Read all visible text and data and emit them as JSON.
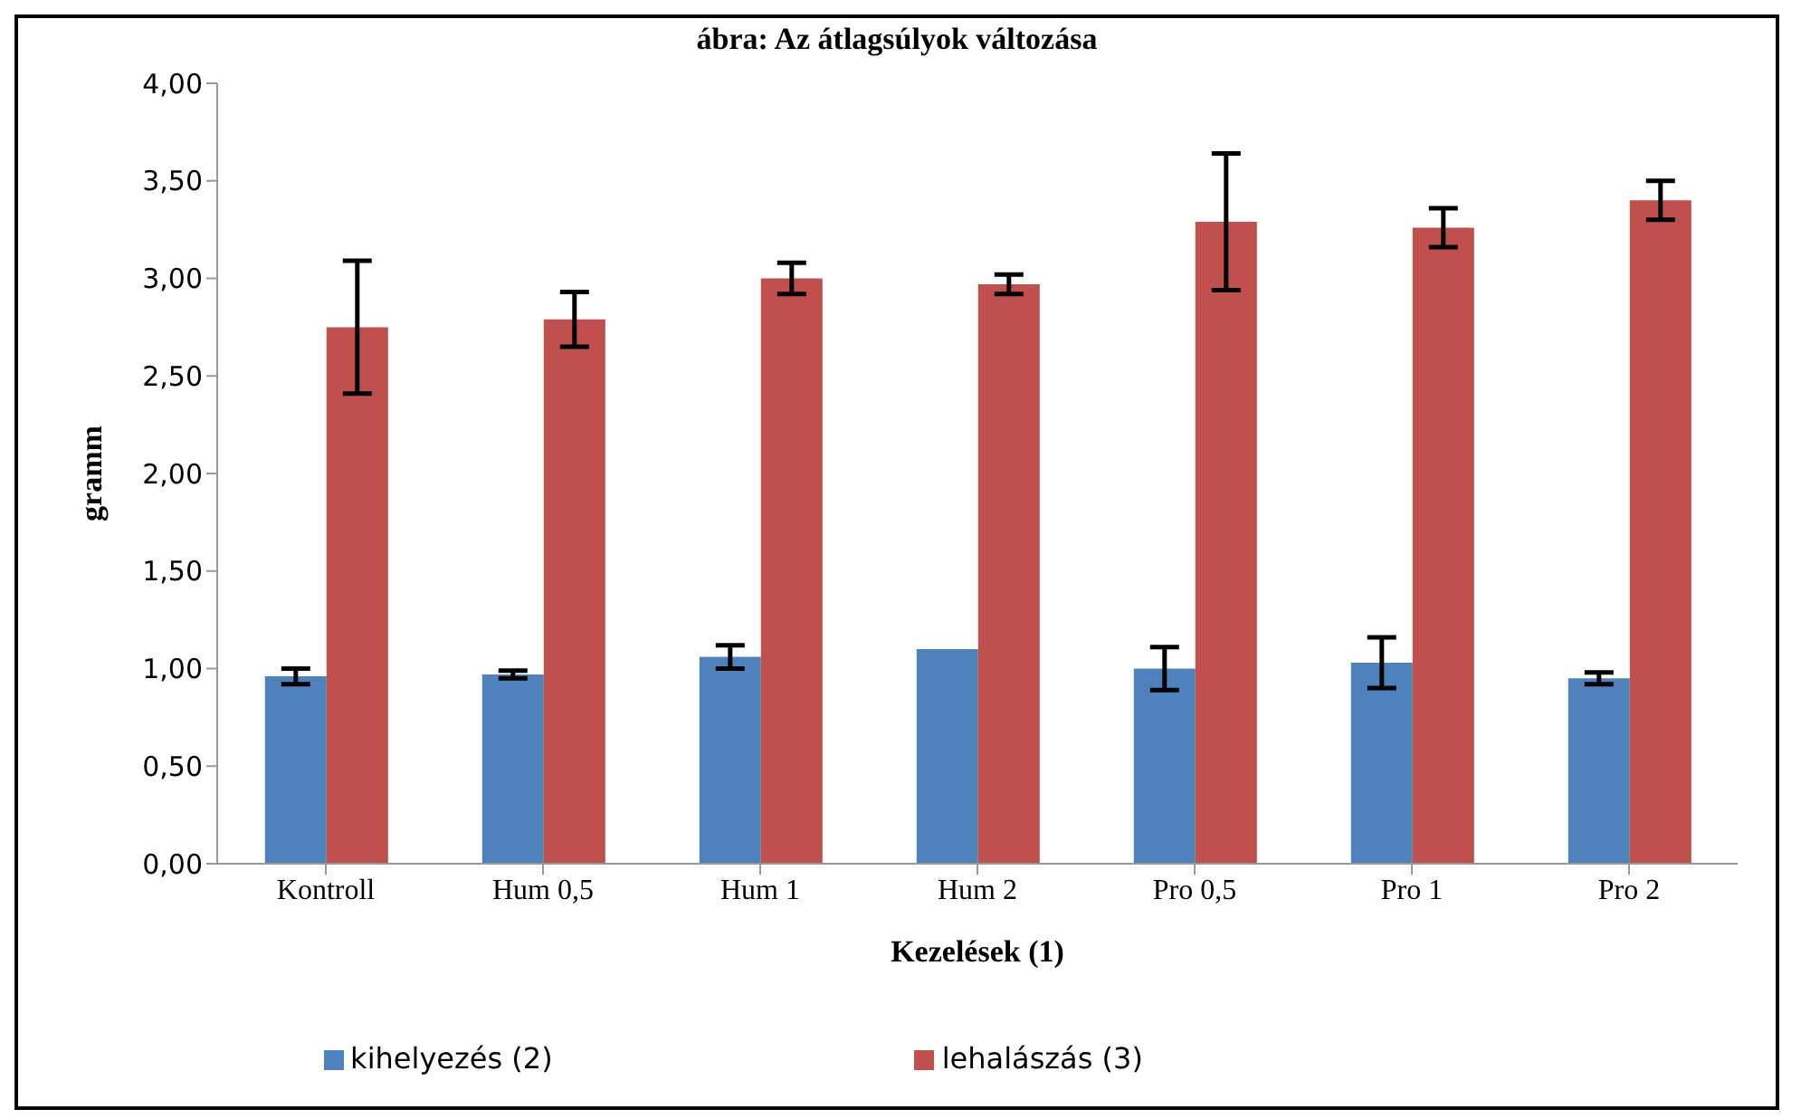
{
  "chart_data": {
    "type": "bar",
    "title": "ábra: Az átlagsúlyok változása",
    "xlabel": "Kezelések (1)",
    "ylabel": "gramm",
    "categories": [
      "Kontroll",
      "Hum 0,5",
      "Hum 1",
      "Hum 2",
      "Pro 0,5",
      "Pro 1",
      "Pro 2"
    ],
    "series": [
      {
        "name": "kihelyezés (2)",
        "color": "#4f81bd",
        "values": [
          0.96,
          0.97,
          1.06,
          1.1,
          1.0,
          1.03,
          0.95
        ],
        "errors": [
          0.04,
          0.02,
          0.06,
          null,
          0.11,
          0.13,
          0.03
        ]
      },
      {
        "name": "lehalászás (3)",
        "color": "#c0504d",
        "values": [
          2.75,
          2.79,
          3.0,
          2.97,
          3.29,
          3.26,
          3.4
        ],
        "errors": [
          0.34,
          0.14,
          0.08,
          0.05,
          0.35,
          0.1,
          0.1
        ]
      }
    ],
    "ylim": [
      0,
      4
    ],
    "yticks": [
      {
        "value": 0,
        "label": "0,00"
      },
      {
        "value": 0.5,
        "label": "0,50"
      },
      {
        "value": 1,
        "label": "1,00"
      },
      {
        "value": 1.5,
        "label": "1,50"
      },
      {
        "value": 2,
        "label": "2,00"
      },
      {
        "value": 2.5,
        "label": "2,50"
      },
      {
        "value": 3,
        "label": "3,00"
      },
      {
        "value": 3.5,
        "label": "3,50"
      },
      {
        "value": 4,
        "label": "4,00"
      }
    ],
    "grid": false,
    "legend": "bottom"
  }
}
